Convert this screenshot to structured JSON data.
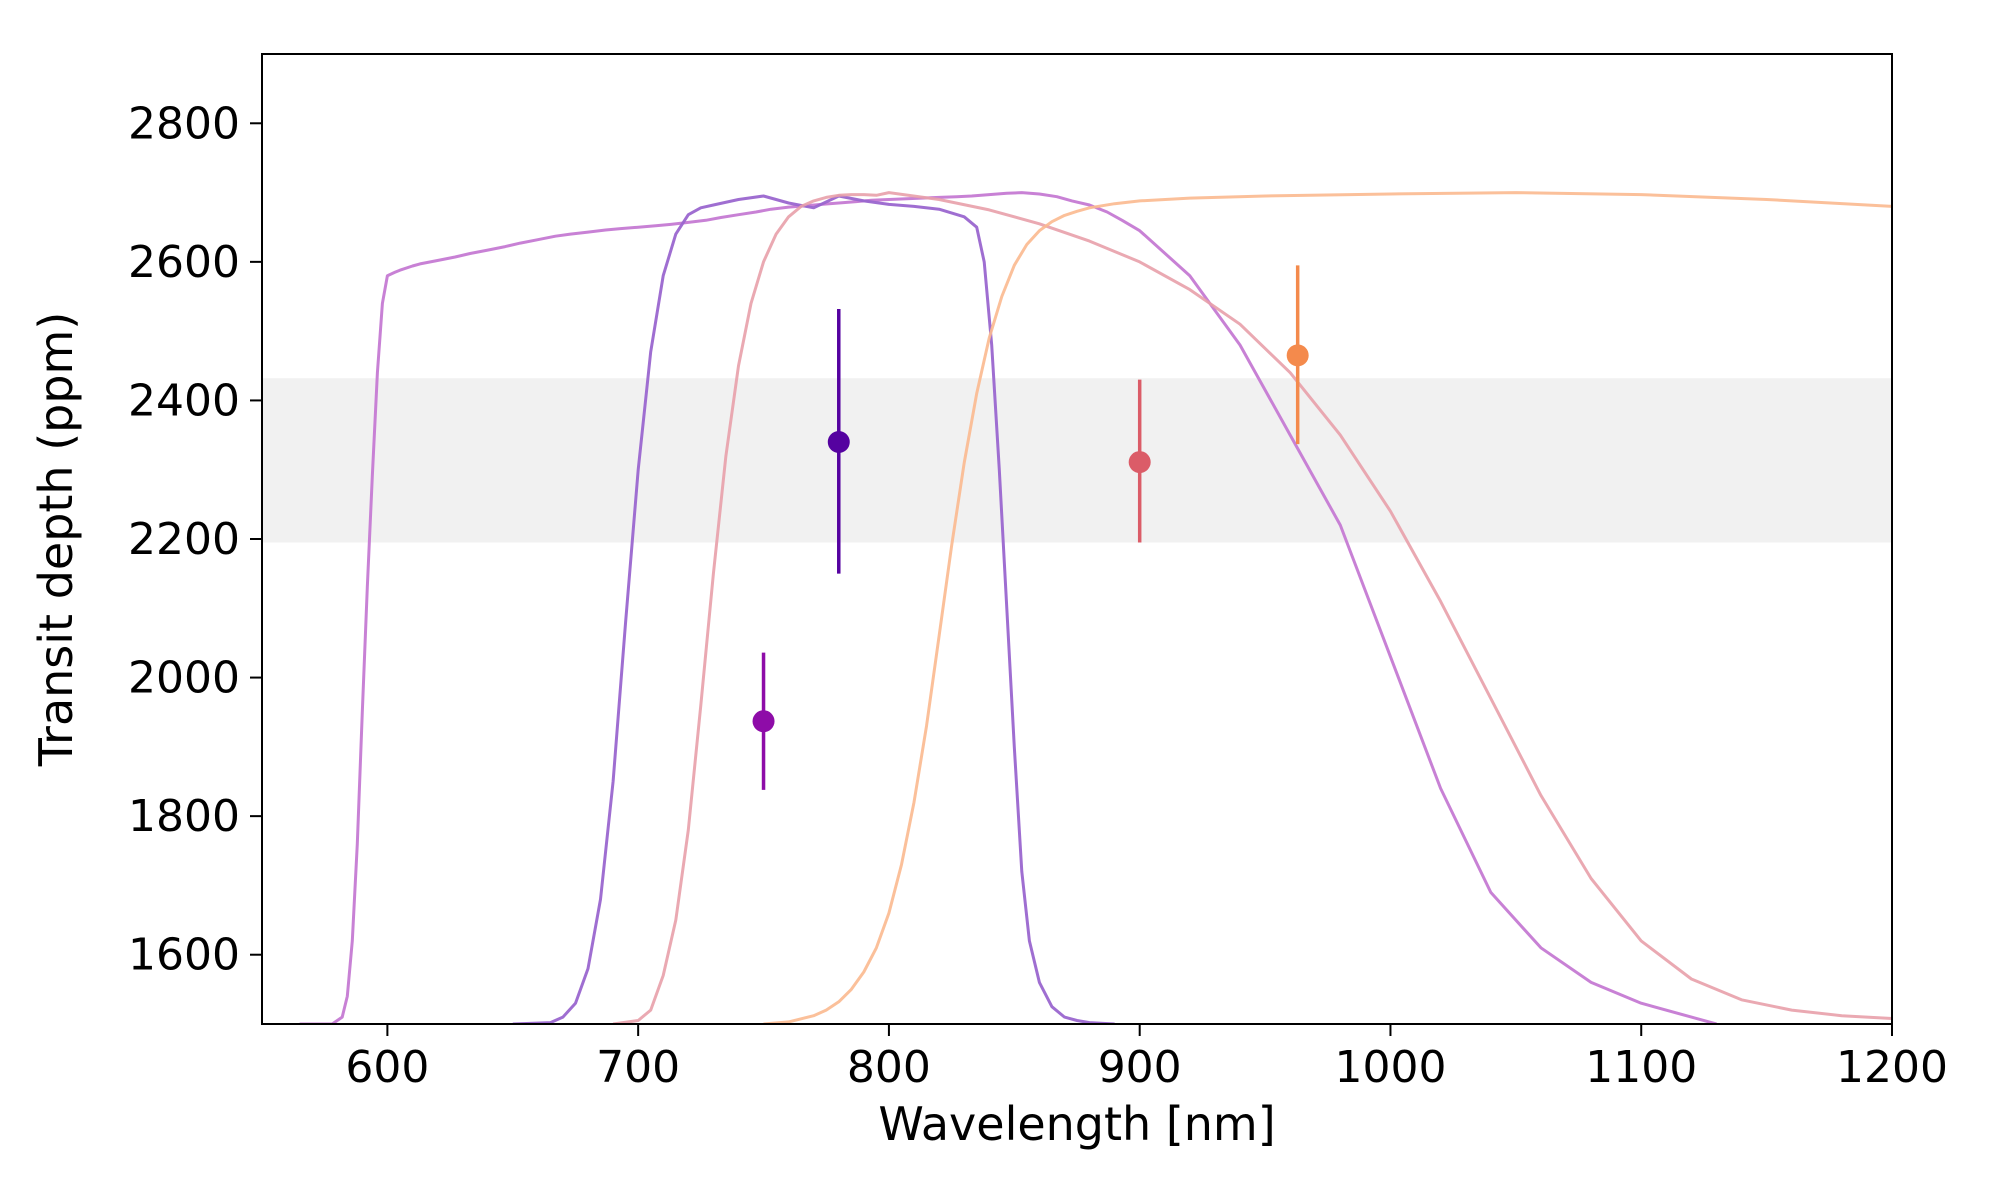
{
  "chart_data": {
    "type": "scatter",
    "xlabel": "Wavelength [nm]",
    "ylabel": "Transit depth (ppm)",
    "xlim": [
      550,
      1200
    ],
    "ylim": [
      1500,
      2900
    ],
    "x_ticks": [
      600,
      700,
      800,
      900,
      1000,
      1100,
      1200
    ],
    "y_ticks": [
      1600,
      1800,
      2000,
      2200,
      2400,
      2600,
      2800
    ],
    "x_tick_labels": [
      "600",
      "700",
      "800",
      "900",
      "1000",
      "1100",
      "1200"
    ],
    "y_tick_labels": [
      "1600",
      "1800",
      "2000",
      "2200",
      "2400",
      "2600",
      "2800"
    ],
    "grid": false,
    "legend": "none",
    "shaded_band": {
      "y_low": 2195,
      "y_high": 2432,
      "color": "#f1f1f1"
    },
    "points": [
      {
        "x": 750,
        "y": 1937,
        "yerr_low": 1838,
        "yerr_high": 2036,
        "color": "#8e0ca8"
      },
      {
        "x": 780,
        "y": 2340,
        "yerr_low": 2150,
        "yerr_high": 2532,
        "color": "#5502a0"
      },
      {
        "x": 900,
        "y": 2311,
        "yerr_low": 2195,
        "yerr_high": 2430,
        "color": "#db5c68"
      },
      {
        "x": 963,
        "y": 2465,
        "yerr_low": 2337,
        "yerr_high": 2595,
        "color": "#f48a4c"
      }
    ],
    "curves": [
      {
        "color": "#c57ad3",
        "opacity": 0.95,
        "x": [
          565,
          578,
          582,
          584,
          586,
          588,
          590,
          592,
          594,
          596,
          598,
          600,
          603,
          605,
          610,
          613,
          620,
          627,
          633,
          640,
          647,
          653,
          660,
          667,
          673,
          680,
          687,
          693,
          700,
          707,
          713,
          720,
          727,
          733,
          740,
          747,
          753,
          760,
          767,
          773,
          780,
          787,
          793,
          800,
          807,
          813,
          820,
          827,
          833,
          840,
          847,
          853,
          860,
          867,
          873,
          880,
          887,
          893,
          900,
          920,
          940,
          960,
          980,
          1000,
          1020,
          1040,
          1060,
          1080,
          1100,
          1120,
          1130
        ],
        "y": [
          1500,
          1500,
          1510,
          1540,
          1620,
          1760,
          1950,
          2130,
          2290,
          2440,
          2540,
          2580,
          2585,
          2588,
          2594,
          2597,
          2602,
          2607,
          2612,
          2617,
          2622,
          2627,
          2632,
          2637,
          2640,
          2643,
          2646,
          2648,
          2650,
          2652,
          2654,
          2657,
          2660,
          2664,
          2668,
          2672,
          2676,
          2679,
          2681,
          2683,
          2685,
          2687,
          2689,
          2690,
          2691,
          2692,
          2693,
          2694,
          2695,
          2697,
          2699,
          2700,
          2698,
          2694,
          2688,
          2682,
          2672,
          2660,
          2645,
          2580,
          2480,
          2350,
          2220,
          2030,
          1840,
          1690,
          1610,
          1560,
          1530,
          1510,
          1500
        ]
      },
      {
        "color": "#9a66cf",
        "opacity": 0.95,
        "x": [
          650,
          665,
          670,
          675,
          680,
          685,
          690,
          695,
          700,
          705,
          710,
          715,
          720,
          725,
          730,
          740,
          750,
          760,
          770,
          780,
          790,
          800,
          810,
          820,
          830,
          835,
          838,
          841,
          844,
          847,
          850,
          853,
          856,
          860,
          865,
          870,
          875,
          880,
          890
        ],
        "y": [
          1500,
          1502,
          1510,
          1530,
          1580,
          1680,
          1850,
          2080,
          2300,
          2470,
          2580,
          2640,
          2668,
          2678,
          2682,
          2690,
          2695,
          2685,
          2678,
          2695,
          2688,
          2683,
          2680,
          2676,
          2665,
          2650,
          2600,
          2480,
          2300,
          2100,
          1900,
          1720,
          1620,
          1560,
          1525,
          1510,
          1505,
          1502,
          1500
        ]
      },
      {
        "color": "#e8a0aa",
        "opacity": 0.9,
        "x": [
          690,
          700,
          705,
          710,
          715,
          720,
          725,
          730,
          735,
          740,
          745,
          750,
          755,
          760,
          765,
          770,
          775,
          780,
          785,
          790,
          795,
          800,
          820,
          840,
          860,
          880,
          900,
          920,
          940,
          960,
          980,
          1000,
          1020,
          1040,
          1060,
          1080,
          1100,
          1120,
          1140,
          1160,
          1180,
          1200
        ],
        "y": [
          1500,
          1505,
          1520,
          1570,
          1650,
          1780,
          1960,
          2150,
          2320,
          2450,
          2540,
          2600,
          2640,
          2665,
          2680,
          2688,
          2693,
          2696,
          2697,
          2697,
          2696,
          2700,
          2690,
          2675,
          2655,
          2630,
          2600,
          2560,
          2510,
          2440,
          2350,
          2240,
          2110,
          1970,
          1830,
          1710,
          1620,
          1565,
          1535,
          1520,
          1512,
          1508
        ]
      },
      {
        "color": "#fbb98f",
        "opacity": 0.9,
        "x": [
          750,
          760,
          770,
          775,
          780,
          785,
          790,
          795,
          800,
          805,
          810,
          815,
          820,
          825,
          830,
          835,
          840,
          845,
          850,
          855,
          860,
          865,
          870,
          875,
          880,
          890,
          900,
          920,
          950,
          1000,
          1050,
          1100,
          1150,
          1200
        ],
        "y": [
          1500,
          1503,
          1512,
          1520,
          1532,
          1550,
          1575,
          1610,
          1660,
          1730,
          1820,
          1930,
          2060,
          2190,
          2310,
          2410,
          2490,
          2550,
          2595,
          2625,
          2645,
          2658,
          2667,
          2673,
          2678,
          2684,
          2688,
          2692,
          2695,
          2698,
          2700,
          2697,
          2690,
          2680
        ]
      }
    ]
  }
}
